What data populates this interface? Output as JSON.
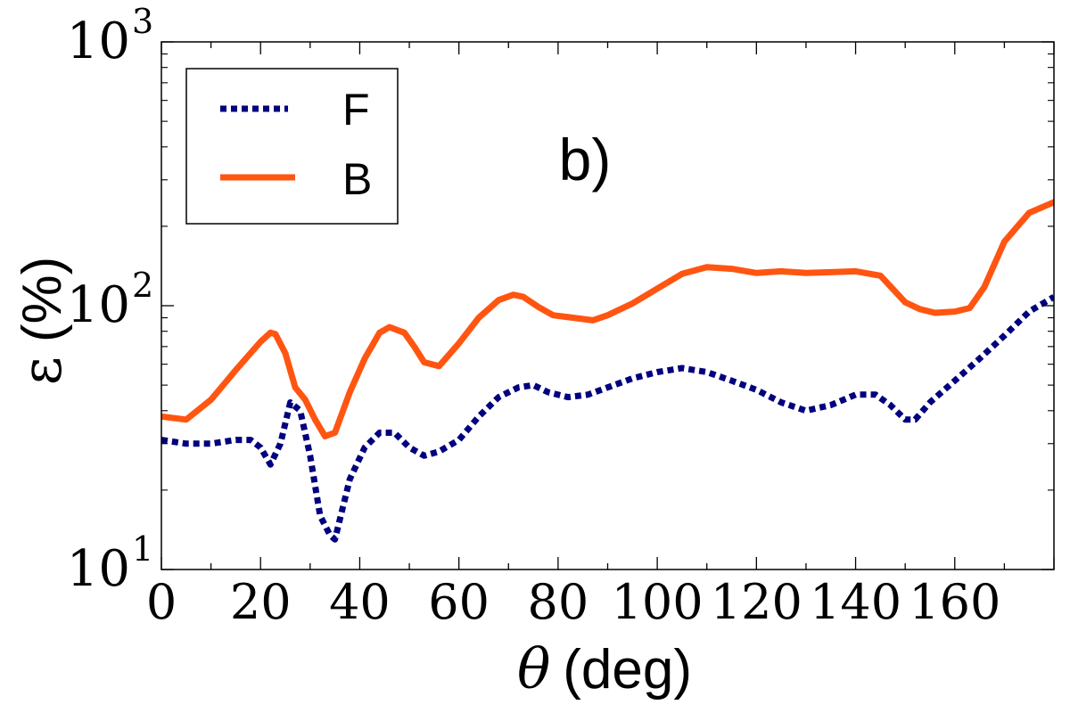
{
  "chart_data": {
    "type": "line",
    "panel_label": "b)",
    "xlabel_symbol": "θ",
    "xlabel_unit": "(deg)",
    "ylabel_symbol": "ε",
    "ylabel_unit": "(%)",
    "xlim": [
      0,
      180
    ],
    "ylim_log10": [
      1,
      3
    ],
    "y_scale": "log",
    "x_ticks": [
      0,
      20,
      40,
      60,
      80,
      100,
      120,
      140,
      160
    ],
    "x_tick_labels": [
      "0",
      "20",
      "40",
      "60",
      "80",
      "100",
      "120",
      "140",
      "160"
    ],
    "y_major_ticks": [
      {
        "value": 10,
        "base": "10",
        "exp": "1"
      },
      {
        "value": 100,
        "base": "10",
        "exp": "2"
      },
      {
        "value": 1000,
        "base": "10",
        "exp": "3"
      }
    ],
    "legend_location": "top-left",
    "series": [
      {
        "name": "F",
        "color": "#00007f",
        "style": "dotted",
        "x": [
          0,
          5,
          10,
          15,
          18,
          20,
          22,
          24,
          26,
          28,
          30,
          32,
          34,
          35,
          38,
          41,
          44,
          47,
          50,
          53,
          56,
          60,
          64,
          68,
          72,
          75,
          78,
          82,
          86,
          90,
          95,
          100,
          105,
          110,
          115,
          120,
          125,
          130,
          135,
          140,
          144,
          147,
          150,
          152,
          155,
          160,
          165,
          170,
          175,
          180
        ],
        "y": [
          31,
          30,
          30,
          31,
          31,
          29,
          25,
          30,
          43,
          40,
          27,
          16,
          13.5,
          13,
          22,
          29,
          33,
          33,
          29,
          27,
          28,
          31,
          38,
          45,
          49,
          50,
          47,
          45,
          46,
          49,
          53,
          56,
          58,
          56,
          52,
          48,
          43,
          40,
          42,
          46,
          46,
          42,
          37,
          37,
          43,
          52,
          63,
          77,
          95,
          108
        ]
      },
      {
        "name": "B",
        "color": "#ff5511",
        "style": "solid",
        "x": [
          0,
          5,
          10,
          15,
          20,
          22,
          23,
          25,
          27,
          29,
          31,
          33,
          35,
          38,
          41,
          44,
          46,
          49,
          51,
          53,
          56,
          60,
          64,
          68,
          71,
          73,
          76,
          79,
          83,
          87,
          90,
          95,
          100,
          105,
          110,
          115,
          120,
          125,
          130,
          135,
          140,
          145,
          150,
          153,
          156,
          160,
          163,
          166,
          170,
          175,
          180
        ],
        "y": [
          38,
          37,
          44,
          57,
          73,
          79,
          78,
          66,
          49,
          44,
          37,
          32,
          33,
          47,
          63,
          79,
          83,
          79,
          70,
          61,
          59,
          72,
          90,
          105,
          110,
          108,
          99,
          92,
          90,
          88,
          92,
          102,
          116,
          132,
          140,
          138,
          133,
          135,
          133,
          134,
          135,
          130,
          103,
          97,
          94,
          95,
          98,
          118,
          175,
          225,
          247
        ]
      }
    ]
  }
}
